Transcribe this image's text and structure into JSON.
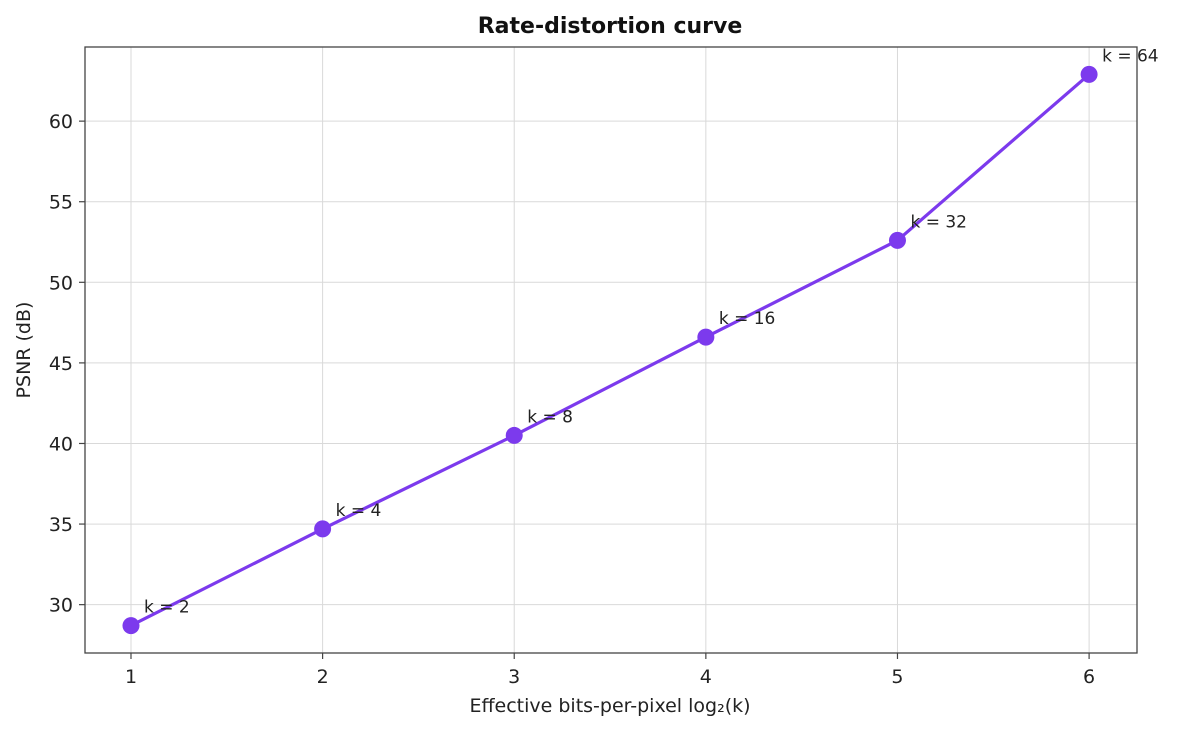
{
  "chart_data": {
    "type": "line",
    "title": "Rate-distortion curve",
    "xlabel": "Effective bits-per-pixel  log₂(k)",
    "ylabel": "PSNR (dB)",
    "xlim": [
      0.76,
      6.25
    ],
    "ylim": [
      27.0,
      64.6
    ],
    "grid": true,
    "x_ticks": [
      1,
      2,
      3,
      4,
      5,
      6
    ],
    "y_ticks": [
      30,
      35,
      40,
      45,
      50,
      55,
      60
    ],
    "x": [
      1,
      2,
      3,
      4,
      5,
      6
    ],
    "y": [
      28.7,
      34.7,
      40.5,
      46.6,
      52.6,
      62.9
    ],
    "point_labels": [
      "k = 2",
      "k = 4",
      "k = 8",
      "k = 16",
      "k = 32",
      "k = 64"
    ],
    "color": "#7c3aed"
  }
}
